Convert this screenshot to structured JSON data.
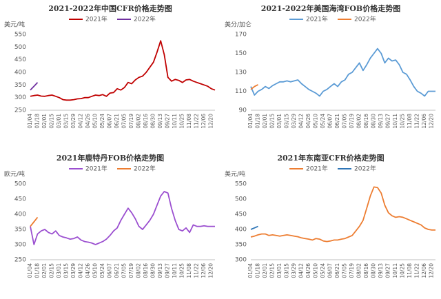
{
  "chart_data": [
    {
      "type": "line",
      "title": "2021-2022年中国CFR价格走势图",
      "y_label": "美元/吨",
      "categories": [
        "01/04",
        null,
        "01/18",
        null,
        "02/01",
        null,
        "02/15",
        null,
        "03/01",
        null,
        "03/15",
        null,
        "03/29",
        null,
        "04/12",
        null,
        "04/26",
        null,
        "05/10",
        null,
        "05/24",
        null,
        "06/07",
        null,
        "06/21",
        null,
        "07/05",
        null,
        "07/19",
        null,
        "08/02",
        null,
        "08/16",
        null,
        "08/30",
        null,
        "09/13",
        null,
        "09/27",
        null,
        "10/11",
        null,
        "10/25",
        null,
        "11/08",
        null,
        "11/22",
        null,
        "12/06",
        null,
        "12/20",
        null
      ],
      "series": [
        {
          "name": "2021年",
          "color": "#c00000",
          "values": [
            305,
            308,
            310,
            306,
            305,
            308,
            310,
            305,
            300,
            292,
            290,
            290,
            292,
            295,
            296,
            300,
            300,
            305,
            310,
            308,
            312,
            305,
            318,
            320,
            335,
            330,
            340,
            360,
            355,
            370,
            380,
            385,
            400,
            420,
            440,
            480,
            525,
            470,
            380,
            365,
            372,
            368,
            360,
            370,
            372,
            365,
            360,
            355,
            350,
            345,
            335,
            330
          ]
        },
        {
          "name": "2022年",
          "color": "#7030a0",
          "values": [
            330,
            345,
            360,
            null,
            null,
            null,
            null,
            null,
            null,
            null,
            null,
            null,
            null,
            null,
            null,
            null,
            null,
            null,
            null,
            null,
            null,
            null,
            null,
            null,
            null,
            null,
            null,
            null,
            null,
            null,
            null,
            null,
            null,
            null,
            null,
            null,
            null,
            null,
            null,
            null,
            null,
            null,
            null,
            null,
            null,
            null,
            null,
            null,
            null,
            null,
            null,
            null
          ]
        }
      ],
      "ylim": [
        250,
        550
      ],
      "yticks": [
        250,
        300,
        350,
        400,
        450,
        500,
        550
      ],
      "grid": false
    },
    {
      "type": "line",
      "title": "2021-2022年美国海湾FOB价格走势图",
      "y_label": "美分/加仑",
      "categories": [
        "01/04",
        null,
        "01/18",
        null,
        "02/01",
        null,
        "02/15",
        null,
        "03/01",
        null,
        "03/15",
        null,
        "03/29",
        null,
        "04/12",
        null,
        "04/26",
        null,
        "05/10",
        null,
        "05/24",
        null,
        "06/07",
        null,
        "06/21",
        null,
        "07/05",
        null,
        "07/19",
        null,
        "08/02",
        null,
        "08/16",
        null,
        "08/30",
        null,
        "09/13",
        null,
        "09/27",
        null,
        "10/11",
        null,
        "10/25",
        null,
        "11/08",
        null,
        "11/22",
        null,
        "12/06",
        null,
        "12/20",
        null
      ],
      "series": [
        {
          "name": "2021年",
          "color": "#5b9bd5",
          "values": [
            115,
            106,
            110,
            112,
            115,
            113,
            116,
            118,
            120,
            120,
            121,
            120,
            121,
            122,
            118,
            115,
            112,
            110,
            108,
            105,
            110,
            112,
            115,
            118,
            115,
            120,
            122,
            128,
            130,
            135,
            140,
            132,
            138,
            145,
            150,
            155,
            150,
            140,
            145,
            142,
            143,
            138,
            130,
            128,
            122,
            115,
            110,
            108,
            105,
            110,
            110,
            110
          ]
        },
        {
          "name": "2022年",
          "color": "#ed7d31",
          "values": [
            112,
            115,
            117,
            null,
            null,
            null,
            null,
            null,
            null,
            null,
            null,
            null,
            null,
            null,
            null,
            null,
            null,
            null,
            null,
            null,
            null,
            null,
            null,
            null,
            null,
            null,
            null,
            null,
            null,
            null,
            null,
            null,
            null,
            null,
            null,
            null,
            null,
            null,
            null,
            null,
            null,
            null,
            null,
            null,
            null,
            null,
            null,
            null,
            null,
            null,
            null,
            null
          ]
        }
      ],
      "ylim": [
        90,
        170
      ],
      "yticks": [
        90,
        110,
        130,
        150,
        170
      ],
      "grid": false
    },
    {
      "type": "line",
      "title": "2021年鹿特丹FOB价格走势图",
      "y_label": "欧元/吨",
      "categories": [
        "01/04",
        null,
        "01/18",
        null,
        "02/01",
        null,
        "02/15",
        null,
        "03/01",
        null,
        "03/15",
        null,
        "03/29",
        null,
        "04/12",
        null,
        "04/26",
        null,
        "05/10",
        null,
        "05/24",
        null,
        "06/07",
        null,
        "06/21",
        null,
        "07/05",
        null,
        "07/19",
        null,
        "08/02",
        null,
        "08/16",
        null,
        "08/30",
        null,
        "09/13",
        null,
        "09/27",
        null,
        "10/11",
        null,
        "10/25",
        null,
        "11/08",
        null,
        "11/22",
        null,
        "12/06",
        null,
        "12/20",
        null
      ],
      "series": [
        {
          "name": "2021年",
          "color": "#9b4fd0",
          "values": [
            360,
            300,
            335,
            345,
            350,
            340,
            335,
            345,
            330,
            325,
            322,
            318,
            320,
            325,
            315,
            310,
            308,
            305,
            300,
            305,
            310,
            318,
            330,
            345,
            355,
            380,
            400,
            420,
            405,
            385,
            360,
            350,
            365,
            380,
            400,
            430,
            460,
            475,
            470,
            420,
            380,
            350,
            345,
            355,
            340,
            365,
            360,
            360,
            362,
            360,
            360,
            360
          ]
        },
        {
          "name": "2022年",
          "color": "#ed7d31",
          "values": [
            360,
            375,
            390,
            null,
            null,
            null,
            null,
            null,
            null,
            null,
            null,
            null,
            null,
            null,
            null,
            null,
            null,
            null,
            null,
            null,
            null,
            null,
            null,
            null,
            null,
            null,
            null,
            null,
            null,
            null,
            null,
            null,
            null,
            null,
            null,
            null,
            null,
            null,
            null,
            null,
            null,
            null,
            null,
            null,
            null,
            null,
            null,
            null,
            null,
            null,
            null,
            null
          ]
        }
      ],
      "ylim": [
        250,
        500
      ],
      "yticks": [
        250,
        300,
        350,
        400,
        450,
        500
      ],
      "grid": false
    },
    {
      "type": "line",
      "title": "2021年东南亚CFR价格走势图",
      "y_label": "美元/吨",
      "categories": [
        "01/04",
        null,
        "01/18",
        null,
        "02/01",
        null,
        "02/15",
        null,
        "03/01",
        null,
        "03/15",
        null,
        "03/29",
        null,
        "04/12",
        null,
        "04/26",
        null,
        "05/10",
        null,
        "05/24",
        null,
        "06/07",
        null,
        "06/21",
        null,
        "07/05",
        null,
        "07/19",
        null,
        "08/02",
        null,
        "08/16",
        null,
        "08/30",
        null,
        "09/13",
        null,
        "09/27",
        null,
        "10/11",
        null,
        "10/25",
        null,
        "11/08",
        null,
        "11/22",
        null,
        "12/06",
        null,
        "12/20",
        null
      ],
      "series": [
        {
          "name": "2021年",
          "color": "#ed7d31",
          "values": [
            375,
            378,
            382,
            385,
            385,
            380,
            382,
            380,
            378,
            380,
            382,
            380,
            378,
            376,
            372,
            370,
            368,
            365,
            370,
            368,
            362,
            360,
            362,
            365,
            365,
            368,
            370,
            375,
            380,
            395,
            410,
            430,
            470,
            510,
            540,
            538,
            520,
            480,
            455,
            445,
            440,
            442,
            440,
            435,
            430,
            425,
            420,
            415,
            405,
            400,
            398,
            398
          ]
        },
        {
          "name": "2022年",
          "color": "#2e75b6",
          "values": [
            400,
            405,
            410,
            null,
            null,
            null,
            null,
            null,
            null,
            null,
            null,
            null,
            null,
            null,
            null,
            null,
            null,
            null,
            null,
            null,
            null,
            null,
            null,
            null,
            null,
            null,
            null,
            null,
            null,
            null,
            null,
            null,
            null,
            null,
            null,
            null,
            null,
            null,
            null,
            null,
            null,
            null,
            null,
            null,
            null,
            null,
            null,
            null,
            null,
            null,
            null,
            null
          ]
        }
      ],
      "ylim": [
        300,
        550
      ],
      "yticks": [
        300,
        350,
        400,
        450,
        500,
        550
      ],
      "grid": false
    }
  ]
}
